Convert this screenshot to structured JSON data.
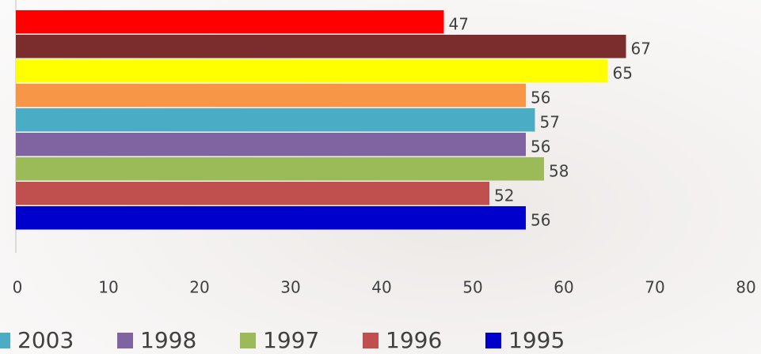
{
  "chart_data": {
    "type": "bar",
    "orientation": "horizontal",
    "series": [
      {
        "name": null,
        "color": "#ff0000",
        "values": [
          47
        ]
      },
      {
        "name": null,
        "color": "#7b2c2c",
        "values": [
          67
        ]
      },
      {
        "name": null,
        "color": "#ffff00",
        "values": [
          65
        ]
      },
      {
        "name": null,
        "color": "#f79646",
        "values": [
          56
        ]
      },
      {
        "name": "2003",
        "color": "#4bacc6",
        "values": [
          57
        ]
      },
      {
        "name": "1998",
        "color": "#8064a2",
        "values": [
          56
        ]
      },
      {
        "name": "1997",
        "color": "#9bbb59",
        "values": [
          58
        ]
      },
      {
        "name": "1996",
        "color": "#c0504d",
        "values": [
          52
        ]
      },
      {
        "name": "1995",
        "color": "#0000cc",
        "values": [
          56
        ]
      }
    ],
    "xlim": [
      0,
      80
    ],
    "xticks": [
      0,
      10,
      20,
      30,
      40,
      50,
      60,
      70,
      80
    ],
    "legend": "bottom"
  }
}
